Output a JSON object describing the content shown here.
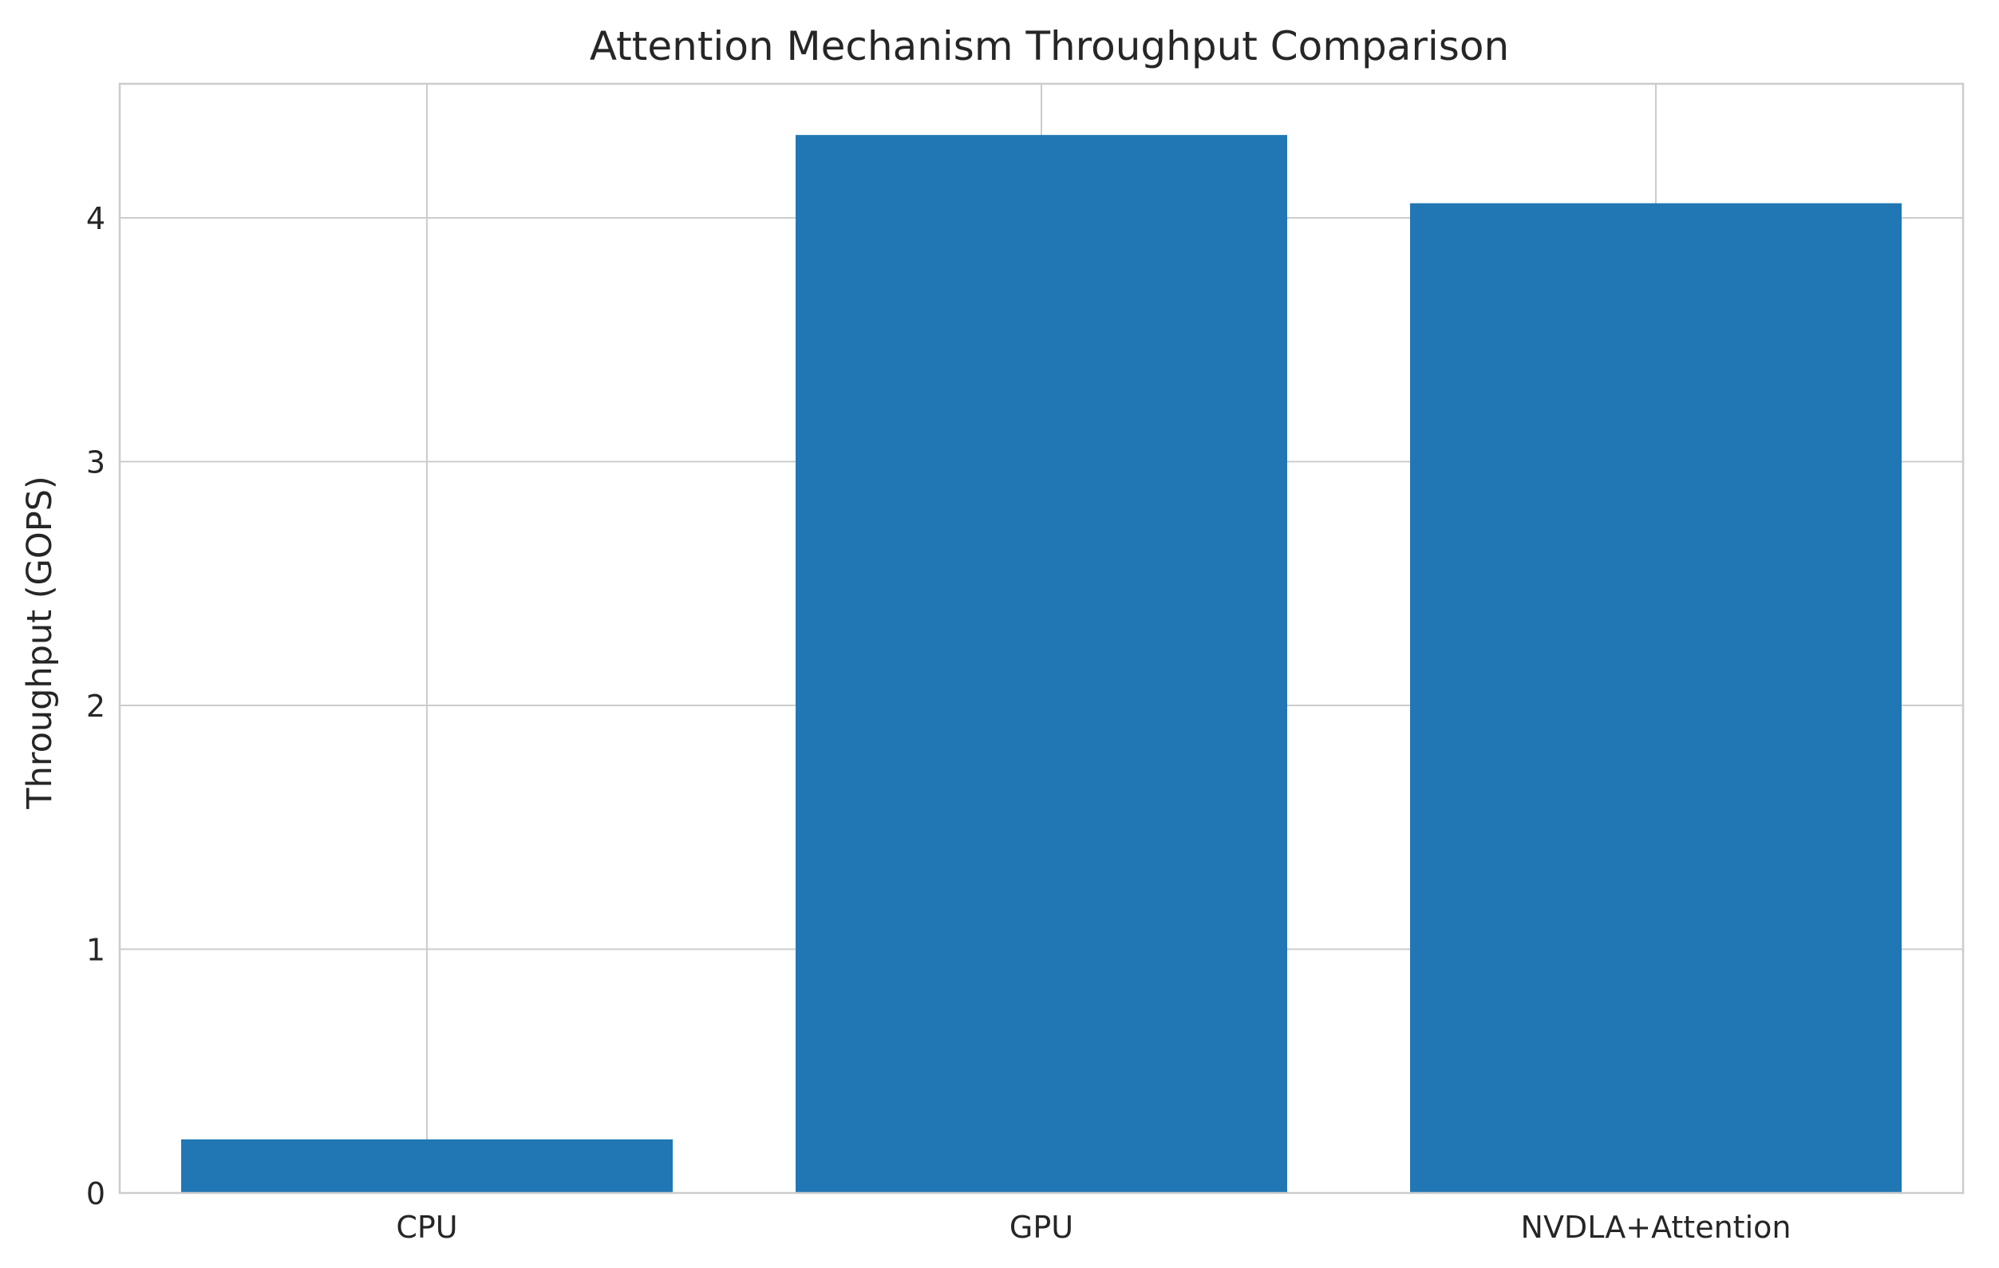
{
  "chart_data": {
    "type": "bar",
    "title": "Attention Mechanism Throughput Comparison",
    "xlabel": "",
    "ylabel": "Throughput (GOPS)",
    "categories": [
      "CPU",
      "GPU",
      "NVDLA+Attention"
    ],
    "values": [
      0.22,
      4.34,
      4.06
    ],
    "ylim": [
      0,
      4.55
    ],
    "yticks": [
      0,
      1,
      2,
      3,
      4
    ],
    "grid": true,
    "legend": "none",
    "bar_color": "#2077b4"
  }
}
